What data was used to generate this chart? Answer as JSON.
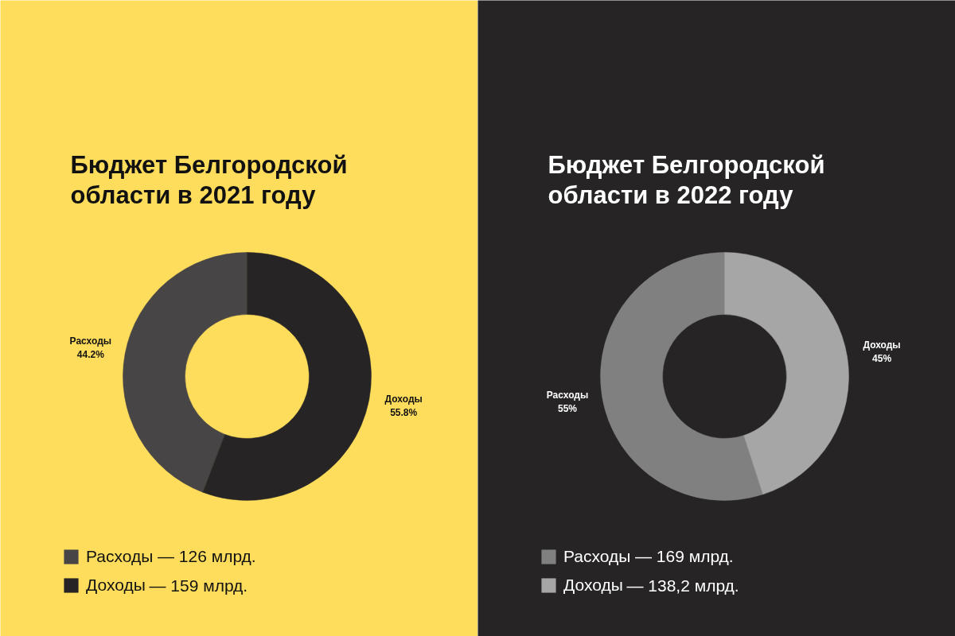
{
  "chart_data": [
    {
      "type": "donut",
      "title": "Бюджет Белгородской области в 2021 году",
      "categories": [
        "Расходы",
        "Доходы"
      ],
      "values": [
        44.2,
        55.8
      ],
      "colors": [
        "#474546",
        "#262425"
      ],
      "value_labels": [
        "44.2%",
        "55.8%"
      ],
      "legend": "bottom",
      "annotations": [
        "— 126 млрд.",
        "— 159 млрд."
      ]
    },
    {
      "type": "donut",
      "title": "Бюджет Белгородской области в 2022 году",
      "categories": [
        "Расходы",
        "Доходы"
      ],
      "values": [
        55,
        45
      ],
      "colors": [
        "#808080",
        "#a6a6a6"
      ],
      "value_labels": [
        "55%",
        "45%"
      ],
      "legend": "bottom",
      "annotations": [
        "— 169 млрд.",
        "— 138,2 млрд."
      ]
    }
  ]
}
